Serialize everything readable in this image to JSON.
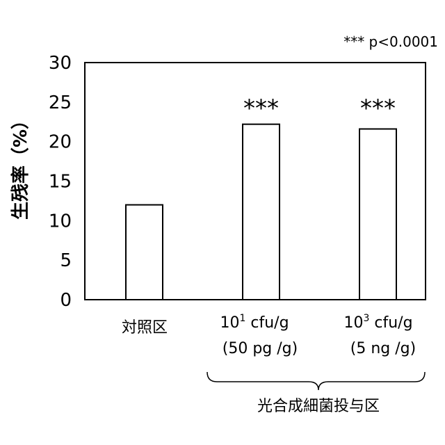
{
  "chart_data": {
    "type": "bar",
    "ylabel": "生残率（%）",
    "ylim": [
      0,
      30
    ],
    "yticks": [
      "0",
      "5",
      "10",
      "15",
      "20",
      "25",
      "30"
    ],
    "categories": [
      {
        "line1": "対照区",
        "line2": ""
      },
      {
        "line1_base": "10",
        "line1_sup": "1",
        "line1_rest": " cfu/g",
        "line2": "(50 pg /g)"
      },
      {
        "line1_base": "10",
        "line1_sup": "3",
        "line1_rest": " cfu/g",
        "line2": "(5 ng /g)"
      }
    ],
    "values": [
      12,
      22.2,
      21.6
    ],
    "significance": [
      "",
      "***",
      "***"
    ],
    "legend_note": "*** p<0.0001",
    "group_label": "光合成細菌投与区"
  }
}
